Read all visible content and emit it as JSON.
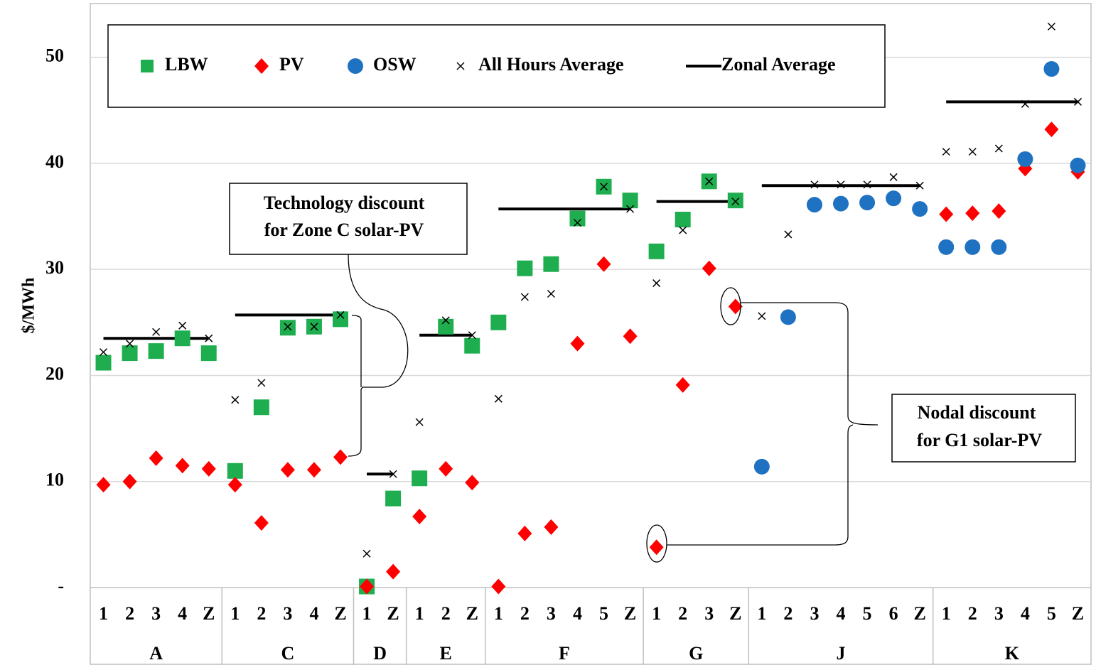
{
  "chart_data": {
    "type": "scatter",
    "y_label": "$/MWh",
    "ylim": [
      0,
      55
    ],
    "yticks": [
      {
        "value": 0,
        "label": "-"
      },
      10,
      20,
      30,
      40,
      50
    ],
    "grid": true,
    "legend": "top",
    "groups": [
      {
        "name": "A",
        "categories": [
          "1",
          "2",
          "3",
          "4",
          "Z"
        ],
        "zonal_average": 23.5
      },
      {
        "name": "C",
        "categories": [
          "1",
          "2",
          "3",
          "4",
          "Z"
        ],
        "zonal_average": 25.7
      },
      {
        "name": "D",
        "categories": [
          "1",
          "Z"
        ],
        "zonal_average": 10.7
      },
      {
        "name": "E",
        "categories": [
          "1",
          "2",
          "Z"
        ],
        "zonal_average": 23.8
      },
      {
        "name": "F",
        "categories": [
          "1",
          "2",
          "3",
          "4",
          "5",
          "Z"
        ],
        "zonal_average": 35.7
      },
      {
        "name": "G",
        "categories": [
          "1",
          "2",
          "3",
          "Z"
        ],
        "zonal_average": 36.4
      },
      {
        "name": "J",
        "categories": [
          "1",
          "2",
          "3",
          "4",
          "5",
          "6",
          "Z"
        ],
        "zonal_average": 37.9
      },
      {
        "name": "K",
        "categories": [
          "1",
          "2",
          "3",
          "4",
          "5",
          "Z"
        ],
        "zonal_average": 45.8
      }
    ],
    "series": [
      {
        "name": "LBW",
        "color": "#1fae4f",
        "marker": "square",
        "values": [
          21.2,
          22.1,
          22.3,
          23.5,
          22.1,
          11.0,
          17.0,
          24.5,
          24.6,
          25.3,
          0.1,
          8.4,
          10.3,
          24.6,
          22.8,
          25.0,
          30.1,
          30.5,
          34.8,
          37.8,
          36.5,
          31.7,
          34.7,
          38.3,
          36.5,
          null,
          null,
          null,
          null,
          null,
          null,
          null,
          null,
          null,
          null,
          null,
          null,
          null
        ]
      },
      {
        "name": "PV",
        "color": "#ff0000",
        "marker": "diamond",
        "values": [
          9.7,
          10.0,
          12.2,
          11.5,
          11.2,
          9.7,
          6.1,
          11.1,
          11.1,
          12.3,
          0.1,
          1.5,
          6.7,
          11.2,
          9.9,
          0.1,
          5.1,
          5.7,
          23.0,
          30.5,
          23.7,
          3.8,
          19.1,
          30.1,
          26.5,
          null,
          null,
          null,
          null,
          null,
          null,
          null,
          35.2,
          35.3,
          35.5,
          39.5,
          43.2,
          39.2
        ]
      },
      {
        "name": "OSW",
        "color": "#1f72c2",
        "marker": "circle",
        "values": [
          null,
          null,
          null,
          null,
          null,
          null,
          null,
          null,
          null,
          null,
          null,
          null,
          null,
          null,
          null,
          null,
          null,
          null,
          null,
          null,
          null,
          null,
          null,
          null,
          null,
          11.4,
          25.5,
          36.1,
          36.2,
          36.3,
          36.7,
          35.7,
          32.1,
          32.1,
          32.1,
          40.4,
          48.9,
          39.8
        ]
      },
      {
        "name": "All Hours Average",
        "color": "#000000",
        "marker": "cross",
        "values": [
          22.2,
          23.0,
          24.1,
          24.7,
          23.5,
          17.7,
          19.3,
          24.6,
          24.6,
          25.7,
          3.2,
          10.7,
          15.6,
          25.2,
          23.8,
          17.8,
          27.4,
          27.7,
          34.4,
          37.8,
          35.7,
          28.7,
          33.7,
          38.3,
          36.4,
          25.6,
          33.3,
          38.0,
          38.0,
          38.0,
          38.7,
          37.9,
          41.1,
          41.1,
          41.4,
          45.6,
          52.9,
          45.8
        ]
      }
    ],
    "zonal_average": {
      "name": "Zonal Average",
      "color": "#000000"
    },
    "annotations": [
      {
        "lines": [
          "Technology discount",
          "for Zone C solar-PV"
        ]
      },
      {
        "lines": [
          "Nodal discount",
          "for G1 solar-PV"
        ]
      }
    ]
  }
}
